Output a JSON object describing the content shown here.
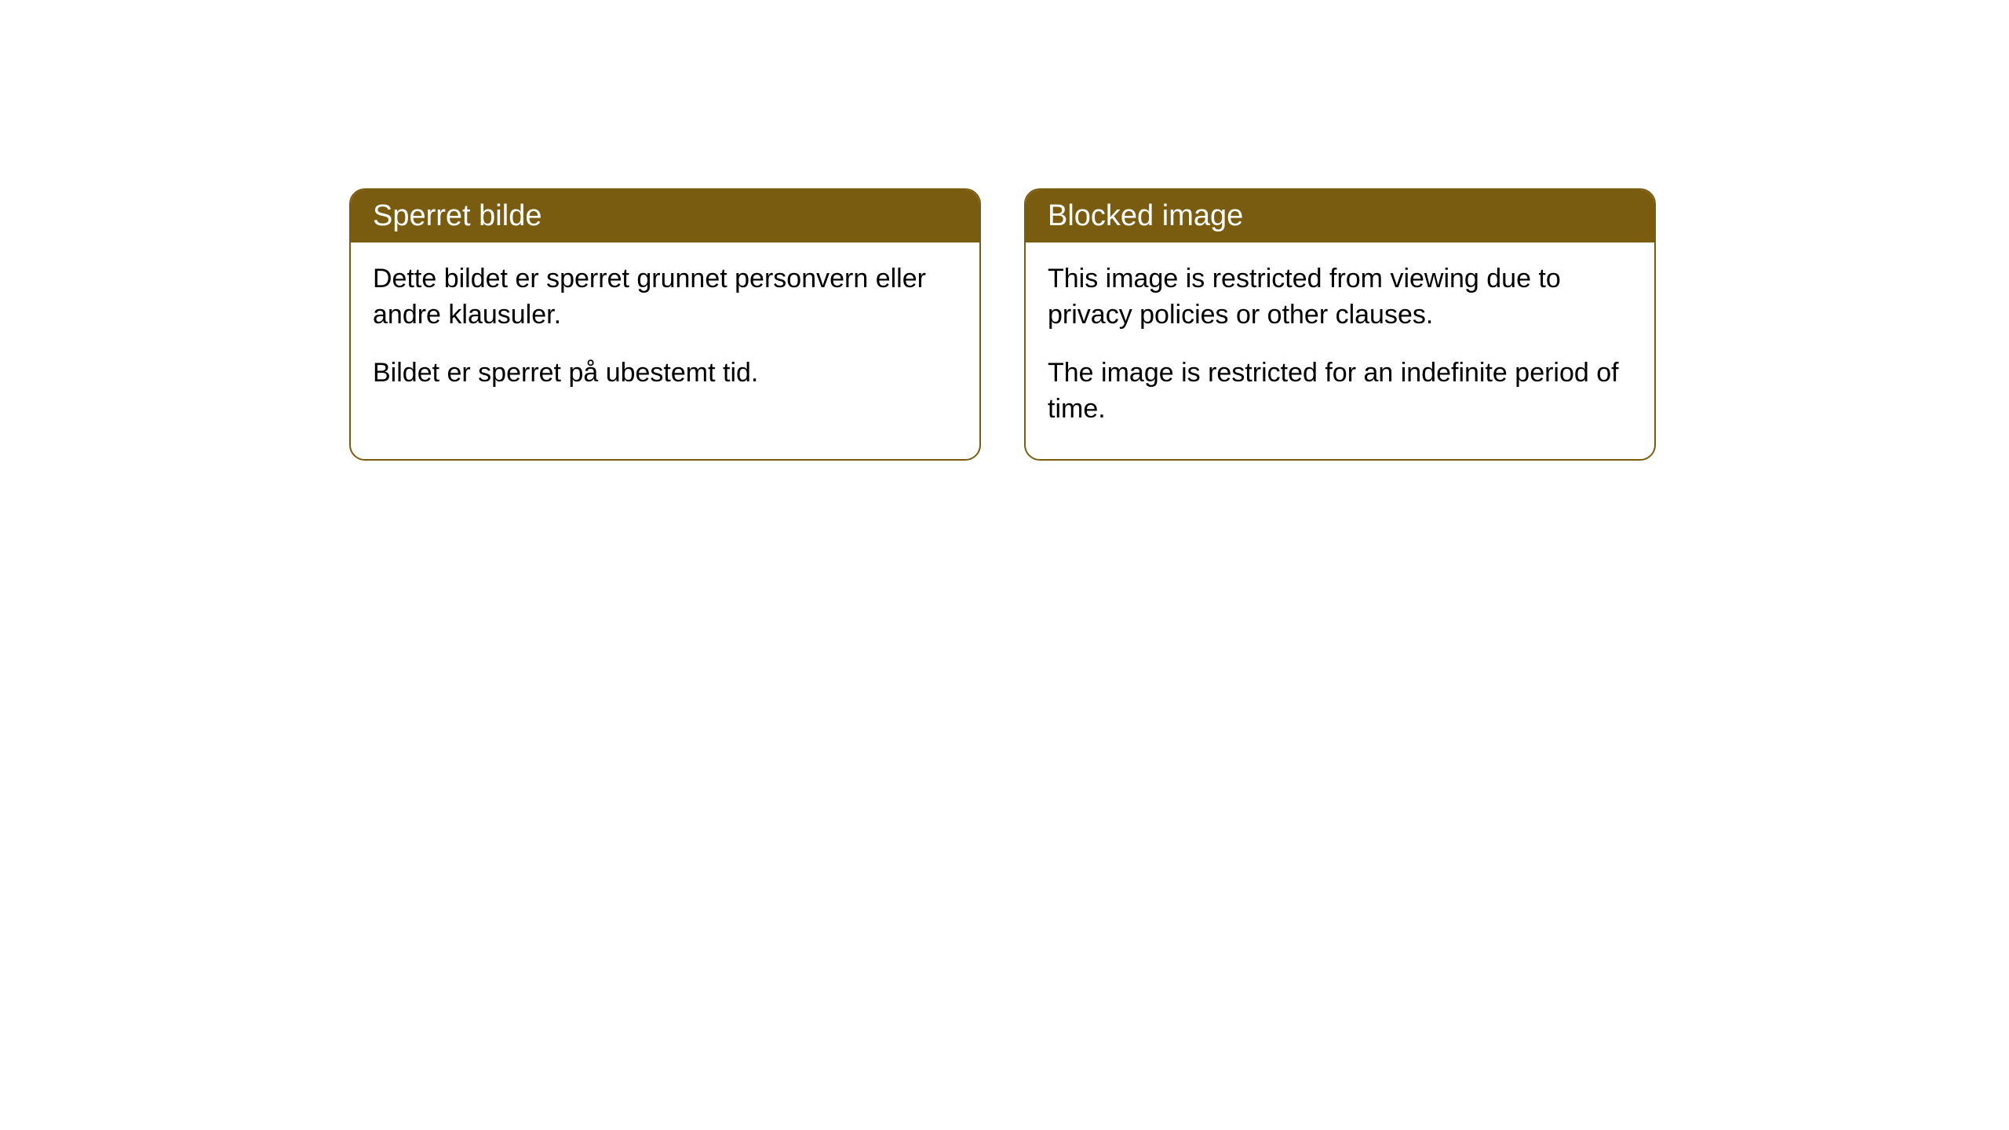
{
  "cards": [
    {
      "title": "Sperret bilde",
      "paragraph1": "Dette bildet er sperret grunnet personvern eller andre klausuler.",
      "paragraph2": "Bildet er sperret på ubestemt tid."
    },
    {
      "title": "Blocked image",
      "paragraph1": "This image is restricted from viewing due to privacy policies or other clauses.",
      "paragraph2": "The image is restricted for an indefinite period of time."
    }
  ],
  "style": {
    "header_bg_color": "#7a5c11",
    "header_text_color": "#ffffff",
    "border_color": "#7a5c11",
    "body_bg_color": "#ffffff",
    "body_text_color": "#000000",
    "border_radius": 20,
    "title_fontsize": 38,
    "body_fontsize": 34
  }
}
